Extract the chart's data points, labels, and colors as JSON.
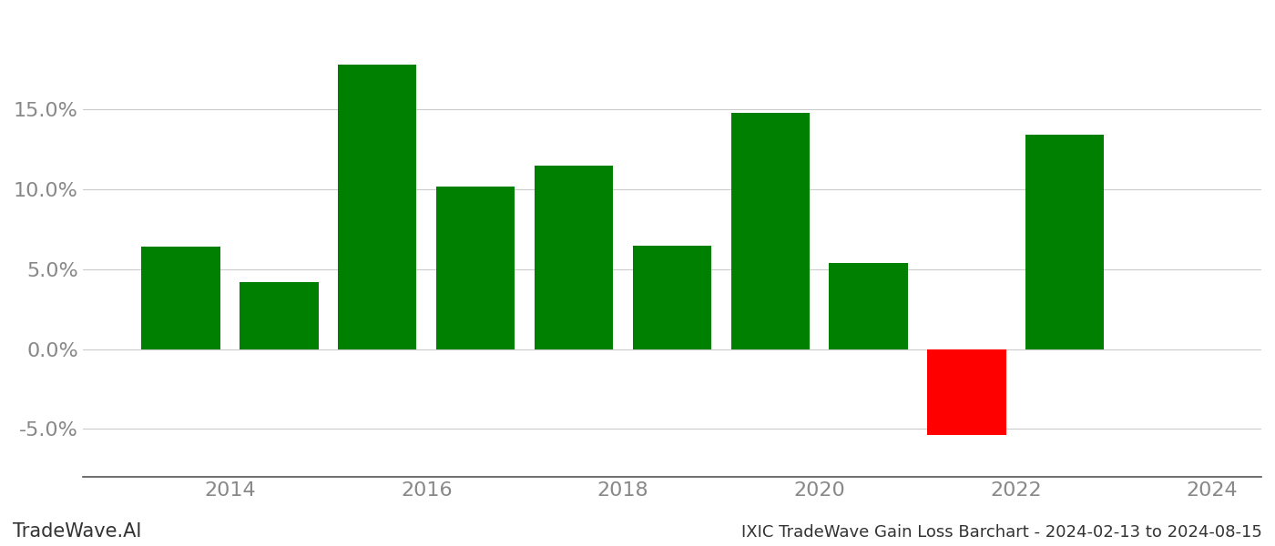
{
  "years": [
    2013.5,
    2014.5,
    2015.5,
    2016.5,
    2017.5,
    2018.5,
    2019.5,
    2020.5,
    2021.5,
    2022.5
  ],
  "values": [
    0.064,
    0.042,
    0.178,
    0.102,
    0.115,
    0.065,
    0.148,
    0.054,
    -0.054,
    0.134
  ],
  "colors": [
    "#008000",
    "#008000",
    "#008000",
    "#008000",
    "#008000",
    "#008000",
    "#008000",
    "#008000",
    "#ff0000",
    "#008000"
  ],
  "ylabel_ticks": [
    -0.05,
    0.0,
    0.05,
    0.1,
    0.15
  ],
  "ylim": [
    -0.08,
    0.21
  ],
  "xticks": [
    2014,
    2016,
    2018,
    2020,
    2022,
    2024
  ],
  "xticklabels": [
    "2014",
    "2016",
    "2018",
    "2020",
    "2022",
    "2024"
  ],
  "xlim": [
    2012.5,
    2024.5
  ],
  "bar_width": 0.8,
  "title_left": "TradeWave.AI",
  "title_right": "IXIC TradeWave Gain Loss Barchart - 2024-02-13 to 2024-08-15",
  "background_color": "#ffffff",
  "grid_color": "#cccccc",
  "tick_color": "#888888",
  "title_fontsize": 13,
  "watermark_fontsize": 15
}
